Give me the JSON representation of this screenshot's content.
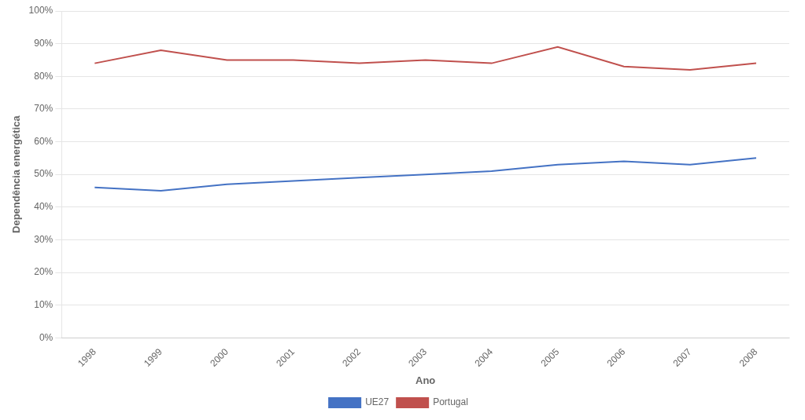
{
  "chart_data": {
    "type": "line",
    "x_label": "Ano",
    "y_label": "Dependência energética",
    "x": [
      1998,
      1999,
      2000,
      2001,
      2002,
      2003,
      2004,
      2005,
      2006,
      2007,
      2008
    ],
    "series": [
      {
        "name": "UE27",
        "color": "#4472C4",
        "values": [
          0.46,
          0.45,
          0.47,
          0.48,
          0.49,
          0.5,
          0.51,
          0.53,
          0.54,
          0.53,
          0.55
        ]
      },
      {
        "name": "Portugal",
        "color": "#C0504D",
        "values": [
          0.84,
          0.88,
          0.85,
          0.85,
          0.84,
          0.85,
          0.84,
          0.89,
          0.83,
          0.82,
          0.84
        ]
      }
    ],
    "xlim": [
      1997.5,
      2008.5
    ],
    "xticks": [
      1998,
      1999,
      2000,
      2001,
      2002,
      2003,
      2004,
      2005,
      2006,
      2007,
      2008
    ],
    "ylim": [
      0.0,
      1.0
    ],
    "yticks": [
      {
        "value": 0.0,
        "label": "0%"
      },
      {
        "value": 0.1,
        "label": "10%"
      },
      {
        "value": 0.2,
        "label": "20%"
      },
      {
        "value": 0.3,
        "label": "30%"
      },
      {
        "value": 0.4,
        "label": "40%"
      },
      {
        "value": 0.5,
        "label": "50%"
      },
      {
        "value": 0.6,
        "label": "60%"
      },
      {
        "value": 0.7,
        "label": "70%"
      },
      {
        "value": 0.8,
        "label": "80%"
      },
      {
        "value": 0.9,
        "label": "90%"
      },
      {
        "value": 1.0,
        "label": "100%"
      }
    ],
    "grid": "y",
    "legend": "bottom"
  }
}
